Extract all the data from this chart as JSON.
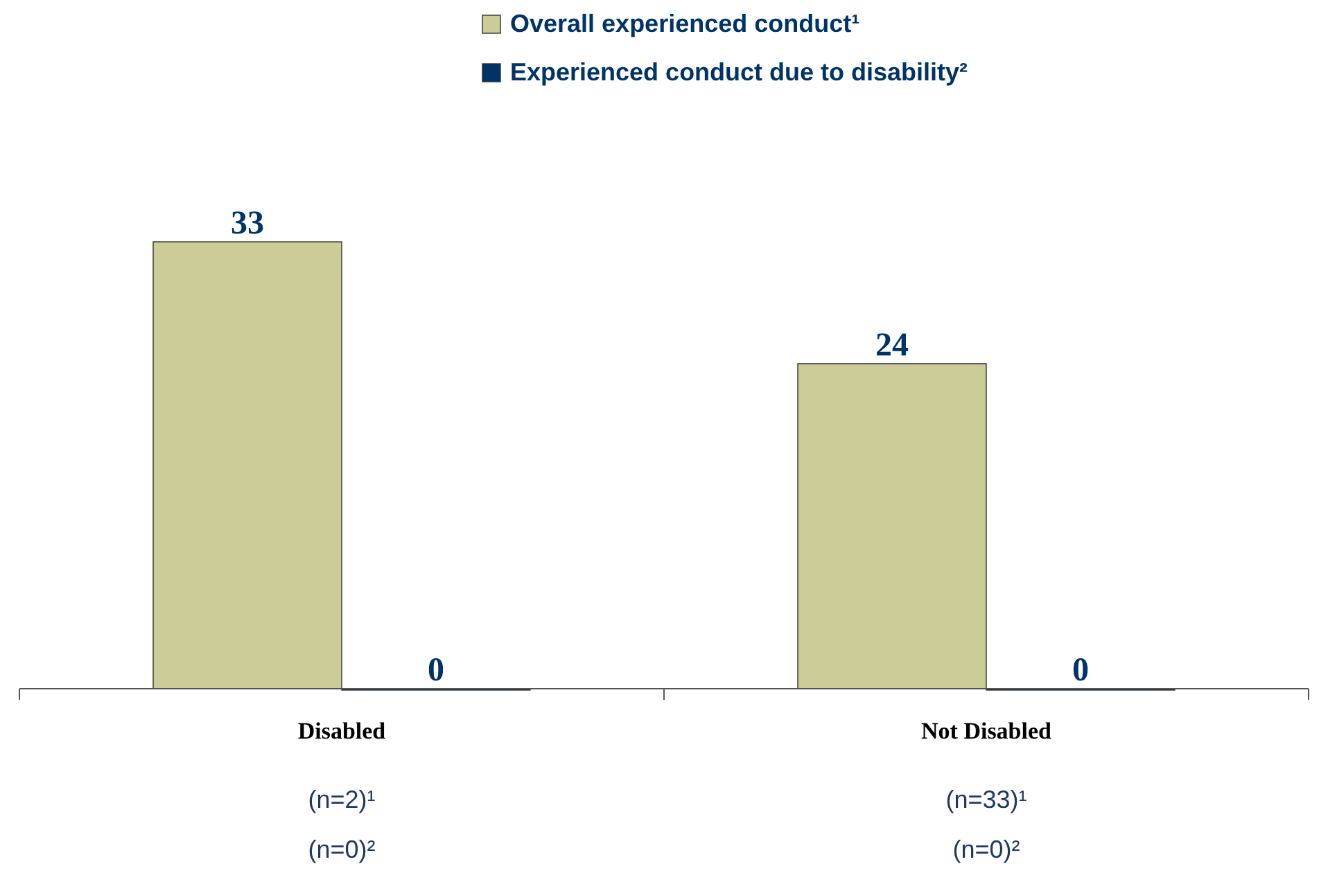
{
  "chart_data": {
    "type": "bar",
    "categories": [
      "Disabled",
      "Not Disabled"
    ],
    "series": [
      {
        "name": "Overall experienced conduct¹",
        "color": "#cccc99",
        "values": [
          33,
          24
        ]
      },
      {
        "name": "Experienced conduct due to disability²",
        "color": "#003366",
        "values": [
          0,
          0
        ]
      }
    ],
    "data_labels": true,
    "legend": "top",
    "annotations": [
      "(n=2)¹",
      "(n=0)²",
      "(n=33)¹",
      "(n=0)²"
    ]
  }
}
